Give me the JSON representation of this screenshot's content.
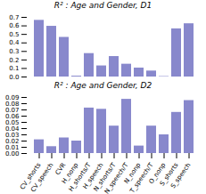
{
  "chart_data": [
    {
      "type": "bar",
      "title": "R² : Age and Gender, D1",
      "categories": [
        "CV_shorts",
        "CV_speech",
        "CVR",
        "H_nonp",
        "H_shorts/T",
        "H_speech",
        "N_shorts/T",
        "N_speech/T",
        "N_nonp",
        "T_speech/T",
        "O_nonp",
        "S_shorts",
        "S_speech"
      ],
      "values": [
        0.665,
        0.595,
        0.465,
        0.01,
        0.275,
        0.13,
        0.24,
        0.15,
        0.105,
        0.07,
        0.005,
        0.565,
        0.625
      ],
      "color": "#8888cc",
      "ylim": [
        0.0,
        0.7
      ],
      "yticks": [
        {
          "value": 0.0,
          "label": "0.0"
        },
        0.1,
        0.2,
        0.3,
        0.4,
        0.5,
        0.6,
        0.7
      ],
      "tick_labels": "y"
    },
    {
      "type": "bar",
      "title": "R² : Age and Gender, D2",
      "categories": [
        "CV_shorts",
        "CV_speech",
        "CVR",
        "H_nonp",
        "H_shorts/T",
        "H_speech",
        "N_shorts/T",
        "N_speech/T",
        "N_nonp",
        "T_speech/T",
        "O_nonp",
        "S_shorts",
        "S_speech"
      ],
      "values": [
        0.022,
        0.011,
        0.025,
        0.02,
        0.073,
        0.071,
        0.044,
        0.087,
        0.012,
        0.044,
        0.03,
        0.066,
        0.085
      ],
      "color": "#8888cc",
      "ylim": [
        0.0,
        0.09
      ],
      "yticks": [
        {
          "value": 0.0,
          "label": "0.00"
        },
        0.01,
        0.02,
        0.03,
        0.04,
        0.05,
        0.06,
        0.07,
        0.08,
        0.09
      ]
    }
  ]
}
